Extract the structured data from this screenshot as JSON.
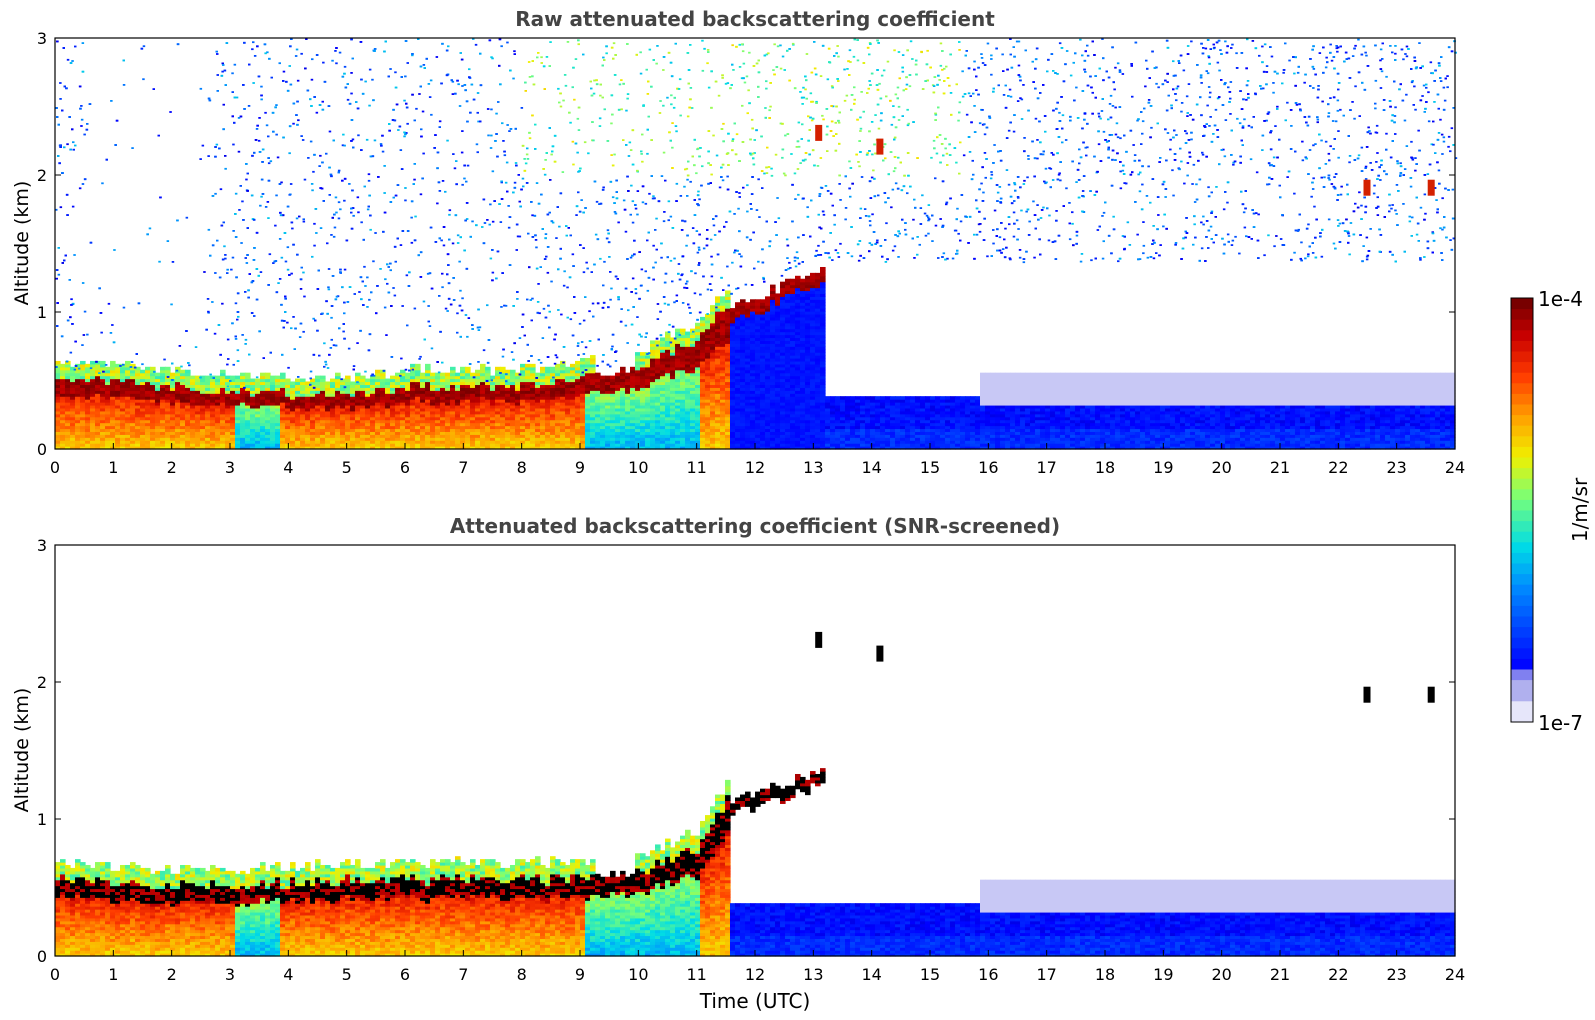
{
  "chart_data": [
    {
      "type": "heatmap",
      "title": "Raw attenuated backscattering coefficient",
      "xlabel": "",
      "ylabel": "Altitude (km)",
      "xlim": [
        0,
        24
      ],
      "ylim": [
        0,
        3
      ],
      "x_ticks": [
        "0",
        "1",
        "2",
        "3",
        "4",
        "5",
        "6",
        "7",
        "8",
        "9",
        "10",
        "11",
        "12",
        "13",
        "14",
        "15",
        "16",
        "17",
        "18",
        "19",
        "20",
        "21",
        "22",
        "23",
        "24"
      ],
      "y_ticks": [
        "0",
        "1",
        "2",
        "3"
      ],
      "screened": false,
      "features": {
        "boundary_layer_top_km": [
          [
            0,
            0.5
          ],
          [
            2,
            0.45
          ],
          [
            3,
            0.4
          ],
          [
            5,
            0.4
          ],
          [
            6,
            0.45
          ],
          [
            8,
            0.45
          ],
          [
            9,
            0.5
          ],
          [
            10,
            0.6
          ],
          [
            11,
            0.8
          ],
          [
            11.5,
            1.05
          ],
          [
            12,
            1.12
          ],
          [
            13,
            1.32
          ]
        ],
        "elevated_layers": [
          {
            "t": 13.1,
            "z_km": 2.3
          },
          {
            "t": 14.15,
            "z_km": 2.2
          },
          {
            "t": 22.5,
            "z_km": 1.9
          },
          {
            "t": 23.6,
            "z_km": 1.9
          }
        ]
      }
    },
    {
      "type": "heatmap",
      "title": "Attenuated backscattering coefficient (SNR-screened)",
      "xlabel": "Time (UTC)",
      "ylabel": "Altitude (km)",
      "xlim": [
        0,
        24
      ],
      "ylim": [
        0,
        3
      ],
      "x_ticks": [
        "0",
        "1",
        "2",
        "3",
        "4",
        "5",
        "6",
        "7",
        "8",
        "9",
        "10",
        "11",
        "12",
        "13",
        "14",
        "15",
        "16",
        "17",
        "18",
        "19",
        "20",
        "21",
        "22",
        "23",
        "24"
      ],
      "y_ticks": [
        "0",
        "1",
        "2",
        "3"
      ],
      "screened": true,
      "features": {
        "boundary_layer_top_km": [
          [
            0,
            0.55
          ],
          [
            2,
            0.5
          ],
          [
            3,
            0.5
          ],
          [
            5,
            0.55
          ],
          [
            6,
            0.55
          ],
          [
            8,
            0.55
          ],
          [
            9,
            0.55
          ],
          [
            10,
            0.62
          ],
          [
            11,
            0.78
          ],
          [
            11.5,
            1.15
          ],
          [
            12,
            1.2
          ],
          [
            13,
            1.35
          ]
        ],
        "elevated_layers": [
          {
            "t": 13.1,
            "z_km": 2.3
          },
          {
            "t": 14.15,
            "z_km": 2.2
          },
          {
            "t": 22.5,
            "z_km": 1.9
          },
          {
            "t": 23.6,
            "z_km": 1.9
          }
        ]
      }
    }
  ],
  "colorbar": {
    "label": "1/m/sr",
    "max_label": "1e-4",
    "min_label": "1e-7",
    "colors": [
      "#e6e6fa",
      "#b0b0ee",
      "#8080f0",
      "#0000ff",
      "#0040ff",
      "#0080ff",
      "#00c0ff",
      "#00e0e0",
      "#40f0a0",
      "#a0ff60",
      "#e0ff20",
      "#ffe000",
      "#ffa000",
      "#ff6000",
      "#ff2000",
      "#d00000",
      "#800000"
    ]
  }
}
